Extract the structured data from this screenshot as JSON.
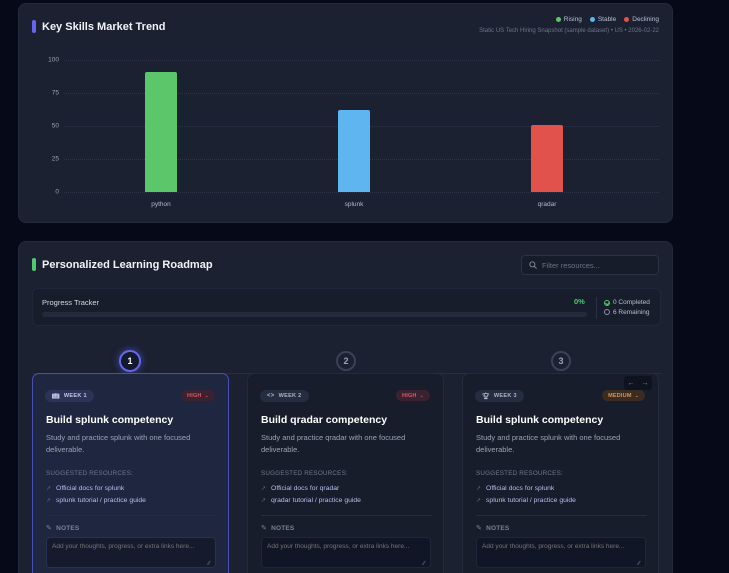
{
  "trend": {
    "title": "Key Skills Market Trend",
    "accent": "#6466f1",
    "legend": [
      {
        "label": "Rising",
        "color": "#5cc76a"
      },
      {
        "label": "Stable",
        "color": "#5fb5f0"
      },
      {
        "label": "Declining",
        "color": "#e0524b"
      }
    ],
    "subtitle": "Static US Tech Hiring Snapshot (sample dataset) • US • 2026-02-22",
    "y_ticks": [
      "100",
      "75",
      "50",
      "25",
      "0"
    ]
  },
  "chart_data": {
    "type": "bar",
    "title": "Key Skills Market Trend",
    "subtitle": "Static US Tech Hiring Snapshot (sample dataset) • US • 2026-02-22",
    "categories": [
      "python",
      "splunk",
      "qradar"
    ],
    "values": [
      91,
      62,
      51
    ],
    "colors": [
      "#5cc76a",
      "#5fb5f0",
      "#e0524b"
    ],
    "trend": [
      "Rising",
      "Stable",
      "Declining"
    ],
    "xlabel": "",
    "ylabel": "",
    "ylim": [
      0,
      100
    ],
    "yticks": [
      0,
      25,
      50,
      75,
      100
    ],
    "grid": true,
    "legend": [
      "Rising",
      "Stable",
      "Declining"
    ],
    "legend_position": "top-right"
  },
  "roadmap": {
    "title": "Personalized Learning Roadmap",
    "accent": "#4ecb71",
    "search_placeholder": "Filter resources...",
    "progress": {
      "label": "Progress Tracker",
      "percent": "0%",
      "completed": "0 Completed",
      "remaining": "6 Remaining"
    },
    "steps": [
      "1",
      "2",
      "3"
    ],
    "resources_heading": "SUGGESTED RESOURCES:",
    "notes_heading": "NOTES",
    "notes_placeholder": "Add your thoughts, progress, or extra links here...",
    "weeks": [
      {
        "badge": "WEEK 1",
        "icon": "book-icon",
        "priority": "HIGH",
        "title": "Build splunk competency",
        "description": "Study and practice splunk with one focused deliverable.",
        "resources": [
          "Official docs for splunk",
          "splunk tutorial / practice guide"
        ]
      },
      {
        "badge": "WEEK 2",
        "icon": "code-icon",
        "priority": "HIGH",
        "title": "Build qradar competency",
        "description": "Study and practice qradar with one focused deliverable.",
        "resources": [
          "Official docs for qradar",
          "qradar tutorial / practice guide"
        ]
      },
      {
        "badge": "WEEK 3",
        "icon": "trophy-icon",
        "priority": "MEDIUM",
        "title": "Build splunk competency",
        "description": "Study and practice splunk with one focused deliverable.",
        "resources": [
          "Official docs for splunk",
          "splunk tutorial / practice guide"
        ]
      }
    ],
    "nav": {
      "prev": "←",
      "next": "→"
    }
  }
}
